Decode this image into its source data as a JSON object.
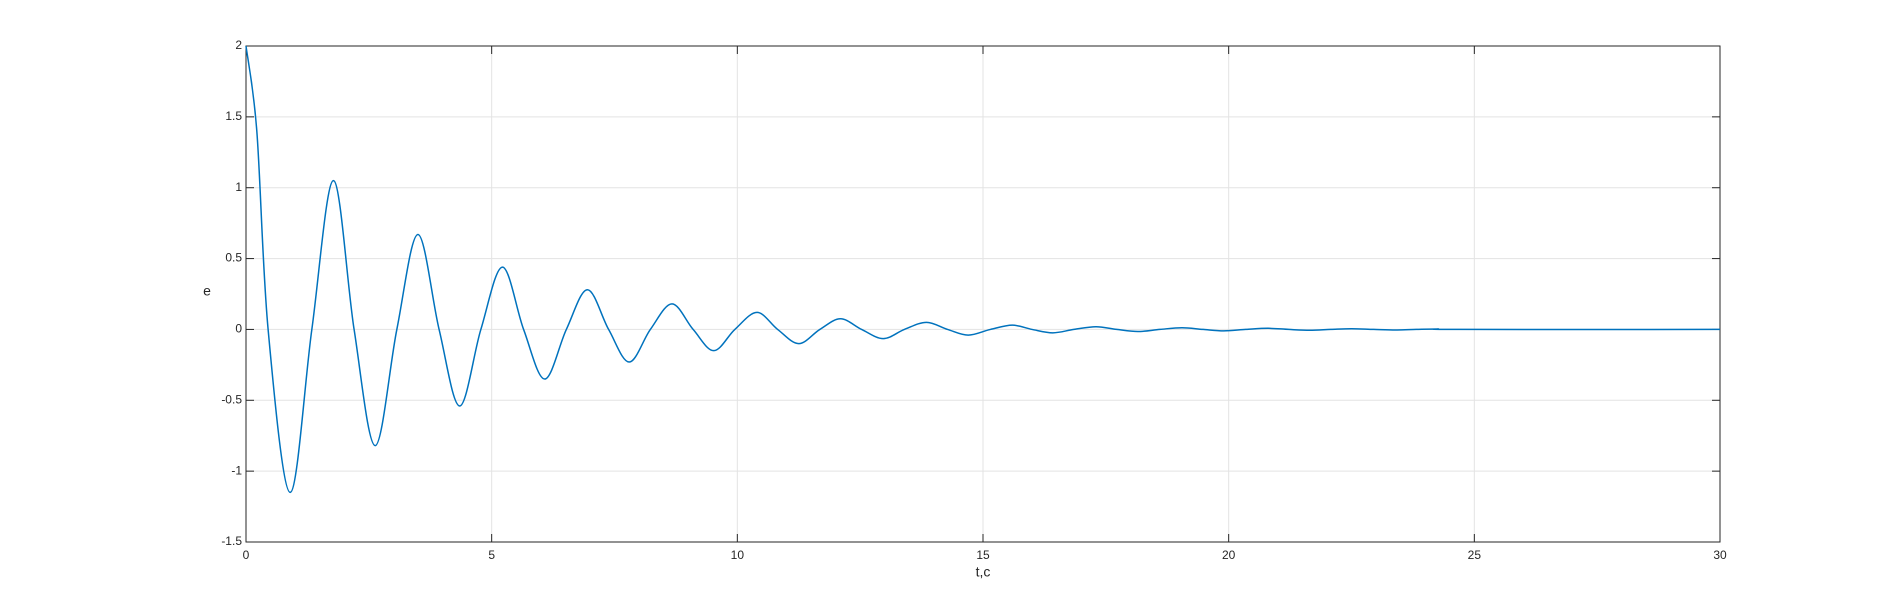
{
  "chart_data": {
    "type": "line",
    "x_label": "t,c",
    "y_label": "e",
    "x": [
      0,
      0.22,
      0.45,
      0.9,
      1.34,
      1.78,
      2.2,
      2.63,
      3.07,
      3.5,
      3.93,
      4.35,
      4.78,
      5.22,
      5.65,
      6.08,
      6.52,
      6.95,
      7.38,
      7.8,
      8.23,
      8.67,
      9.1,
      9.52,
      9.95,
      10.4,
      10.82,
      11.25,
      11.68,
      12.1,
      12.53,
      12.97,
      13.4,
      13.85,
      14.28,
      14.7,
      15.15,
      15.6,
      16.0,
      16.42,
      16.85,
      17.3,
      17.72,
      18.15,
      18.6,
      19.05,
      19.48,
      19.9,
      20.35,
      20.8,
      21.22,
      21.65,
      22.08,
      22.5,
      22.95,
      23.4,
      23.82,
      24.25,
      24.7,
      30
    ],
    "values": [
      2,
      1.4,
      0,
      -1.15,
      0,
      1.05,
      0,
      -0.82,
      0,
      0.67,
      0,
      -0.54,
      0,
      0.44,
      0,
      -0.35,
      0,
      0.28,
      0,
      -0.23,
      0,
      0.18,
      0,
      -0.15,
      0,
      0.12,
      0,
      -0.1,
      0,
      0.075,
      0,
      -0.065,
      0,
      0.05,
      0,
      -0.04,
      0,
      0.03,
      0,
      -0.024,
      0,
      0.019,
      0,
      -0.015,
      0,
      0.012,
      0,
      -0.01,
      0,
      0.008,
      0,
      -0.006,
      0,
      0.005,
      0,
      -0.004,
      0,
      0.003,
      0,
      0
    ],
    "color": "#0072bd",
    "xlim": [
      0,
      30
    ],
    "xticks": [
      0,
      5,
      10,
      15,
      20,
      25,
      30
    ],
    "ylim": [
      -1.5,
      2
    ],
    "yticks": [
      -1.5,
      -1,
      -0.5,
      0,
      0.5,
      1,
      1.5,
      2
    ],
    "grid": true
  }
}
